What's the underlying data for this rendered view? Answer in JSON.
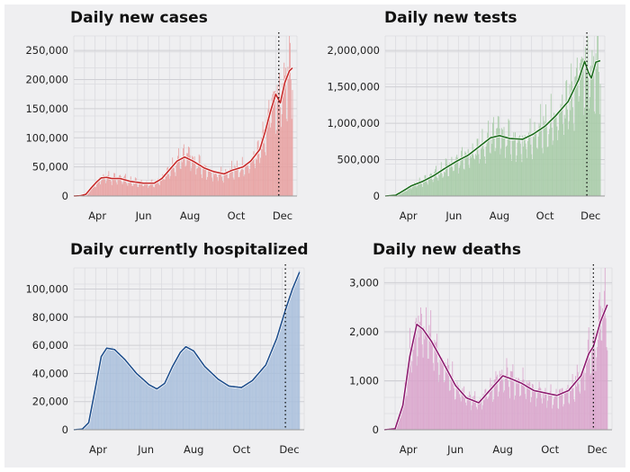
{
  "chart_data": [
    {
      "id": "cases",
      "type": "bar",
      "title": "Daily new cases",
      "x_months": [
        "Apr",
        "Jun",
        "Aug",
        "Oct",
        "Dec"
      ],
      "ylim": [
        0,
        275000
      ],
      "yticks": [
        0,
        50000,
        100000,
        150000,
        200000,
        250000
      ],
      "ytick_labels": [
        "0",
        "50,000",
        "100,000",
        "150,000",
        "200,000",
        "250,000"
      ],
      "vline_date": "2020-11-26",
      "colors": {
        "bars": "#e8a0a0",
        "line": "#c62828"
      },
      "series": [
        {
          "values_7day_avg": [
            [
              "2020-03-01",
              0
            ],
            [
              "2020-03-10",
              500
            ],
            [
              "2020-03-17",
              3000
            ],
            [
              "2020-03-24",
              14000
            ],
            [
              "2020-03-31",
              24000
            ],
            [
              "2020-04-06",
              31000
            ],
            [
              "2020-04-13",
              32000
            ],
            [
              "2020-04-20",
              30000
            ],
            [
              "2020-05-01",
              30000
            ],
            [
              "2020-05-15",
              25000
            ],
            [
              "2020-06-01",
              22000
            ],
            [
              "2020-06-15",
              22000
            ],
            [
              "2020-06-25",
              30000
            ],
            [
              "2020-07-05",
              45000
            ],
            [
              "2020-07-15",
              60000
            ],
            [
              "2020-07-25",
              67000
            ],
            [
              "2020-08-05",
              60000
            ],
            [
              "2020-08-20",
              48000
            ],
            [
              "2020-09-01",
              42000
            ],
            [
              "2020-09-15",
              38000
            ],
            [
              "2020-09-25",
              44000
            ],
            [
              "2020-10-10",
              50000
            ],
            [
              "2020-10-20",
              60000
            ],
            [
              "2020-11-01",
              80000
            ],
            [
              "2020-11-08",
              110000
            ],
            [
              "2020-11-15",
              145000
            ],
            [
              "2020-11-22",
              175000
            ],
            [
              "2020-11-28",
              160000
            ],
            [
              "2020-12-04",
              195000
            ],
            [
              "2020-12-10",
              215000
            ],
            [
              "2020-12-14",
              220000
            ]
          ]
        }
      ]
    },
    {
      "id": "tests",
      "type": "bar",
      "title": "Daily new tests",
      "x_months": [
        "Apr",
        "Jun",
        "Aug",
        "Oct",
        "Dec"
      ],
      "ylim": [
        0,
        2200000
      ],
      "yticks": [
        0,
        500000,
        1000000,
        1500000,
        2000000
      ],
      "ytick_labels": [
        "0",
        "500,000",
        "1,000,000",
        "1,500,000",
        "2,000,000"
      ],
      "vline_date": "2020-11-26",
      "colors": {
        "bars": "#a6cba6",
        "line": "#1b6b1b"
      },
      "series": [
        {
          "values_7day_avg": [
            [
              "2020-03-01",
              0
            ],
            [
              "2020-03-15",
              10000
            ],
            [
              "2020-03-25",
              70000
            ],
            [
              "2020-04-05",
              140000
            ],
            [
              "2020-04-20",
              200000
            ],
            [
              "2020-05-05",
              280000
            ],
            [
              "2020-05-20",
              380000
            ],
            [
              "2020-06-05",
              480000
            ],
            [
              "2020-06-20",
              560000
            ],
            [
              "2020-07-05",
              680000
            ],
            [
              "2020-07-20",
              800000
            ],
            [
              "2020-08-01",
              830000
            ],
            [
              "2020-08-15",
              790000
            ],
            [
              "2020-09-01",
              780000
            ],
            [
              "2020-09-15",
              850000
            ],
            [
              "2020-10-01",
              960000
            ],
            [
              "2020-10-15",
              1100000
            ],
            [
              "2020-11-01",
              1300000
            ],
            [
              "2020-11-15",
              1600000
            ],
            [
              "2020-11-23",
              1850000
            ],
            [
              "2020-11-28",
              1700000
            ],
            [
              "2020-12-02",
              1620000
            ],
            [
              "2020-12-08",
              1840000
            ],
            [
              "2020-12-14",
              1860000
            ]
          ]
        }
      ]
    },
    {
      "id": "hosp",
      "type": "area",
      "title": "Daily currently hospitalized",
      "x_months": [
        "Apr",
        "Jun",
        "Aug",
        "Oct",
        "Dec"
      ],
      "ylim": [
        0,
        115000
      ],
      "yticks": [
        0,
        20000,
        40000,
        60000,
        80000,
        100000
      ],
      "ytick_labels": [
        "0",
        "20,000",
        "40,000",
        "60,000",
        "80,000",
        "100,000"
      ],
      "vline_date": "2020-11-26",
      "colors": {
        "bars": "#a9bfdc",
        "line": "#1f4e8c"
      },
      "series": [
        {
          "values_7day_avg": [
            [
              "2020-03-01",
              0
            ],
            [
              "2020-03-12",
              500
            ],
            [
              "2020-03-20",
              5000
            ],
            [
              "2020-03-28",
              28000
            ],
            [
              "2020-04-05",
              52000
            ],
            [
              "2020-04-12",
              58000
            ],
            [
              "2020-04-22",
              57000
            ],
            [
              "2020-05-05",
              50000
            ],
            [
              "2020-05-20",
              40000
            ],
            [
              "2020-06-05",
              32000
            ],
            [
              "2020-06-15",
              29000
            ],
            [
              "2020-06-25",
              33000
            ],
            [
              "2020-07-05",
              45000
            ],
            [
              "2020-07-15",
              55000
            ],
            [
              "2020-07-22",
              59000
            ],
            [
              "2020-08-01",
              56000
            ],
            [
              "2020-08-15",
              45000
            ],
            [
              "2020-09-01",
              36000
            ],
            [
              "2020-09-15",
              31000
            ],
            [
              "2020-10-01",
              30000
            ],
            [
              "2020-10-15",
              35000
            ],
            [
              "2020-11-01",
              46000
            ],
            [
              "2020-11-15",
              65000
            ],
            [
              "2020-11-26",
              85000
            ],
            [
              "2020-12-05",
              100000
            ],
            [
              "2020-12-14",
              112000
            ]
          ]
        }
      ]
    },
    {
      "id": "deaths",
      "type": "bar",
      "title": "Daily new deaths",
      "x_months": [
        "Apr",
        "Jun",
        "Aug",
        "Oct",
        "Dec"
      ],
      "ylim": [
        0,
        3300
      ],
      "yticks": [
        0,
        1000,
        2000,
        3000
      ],
      "ytick_labels": [
        "0",
        "1,000",
        "2,000",
        "3,000"
      ],
      "vline_date": "2020-11-26",
      "colors": {
        "bars": "#d9a3cb",
        "line": "#8b1a6e"
      },
      "series": [
        {
          "values_7day_avg": [
            [
              "2020-03-01",
              0
            ],
            [
              "2020-03-15",
              20
            ],
            [
              "2020-03-25",
              500
            ],
            [
              "2020-04-03",
              1500
            ],
            [
              "2020-04-12",
              2150
            ],
            [
              "2020-04-20",
              2050
            ],
            [
              "2020-05-01",
              1800
            ],
            [
              "2020-05-15",
              1400
            ],
            [
              "2020-06-01",
              900
            ],
            [
              "2020-06-15",
              650
            ],
            [
              "2020-07-01",
              550
            ],
            [
              "2020-07-15",
              800
            ],
            [
              "2020-08-01",
              1100
            ],
            [
              "2020-08-10",
              1050
            ],
            [
              "2020-08-25",
              950
            ],
            [
              "2020-09-10",
              800
            ],
            [
              "2020-09-25",
              750
            ],
            [
              "2020-10-10",
              700
            ],
            [
              "2020-10-25",
              800
            ],
            [
              "2020-11-10",
              1100
            ],
            [
              "2020-11-20",
              1550
            ],
            [
              "2020-11-26",
              1700
            ],
            [
              "2020-12-05",
              2200
            ],
            [
              "2020-12-14",
              2550
            ]
          ]
        }
      ]
    }
  ]
}
